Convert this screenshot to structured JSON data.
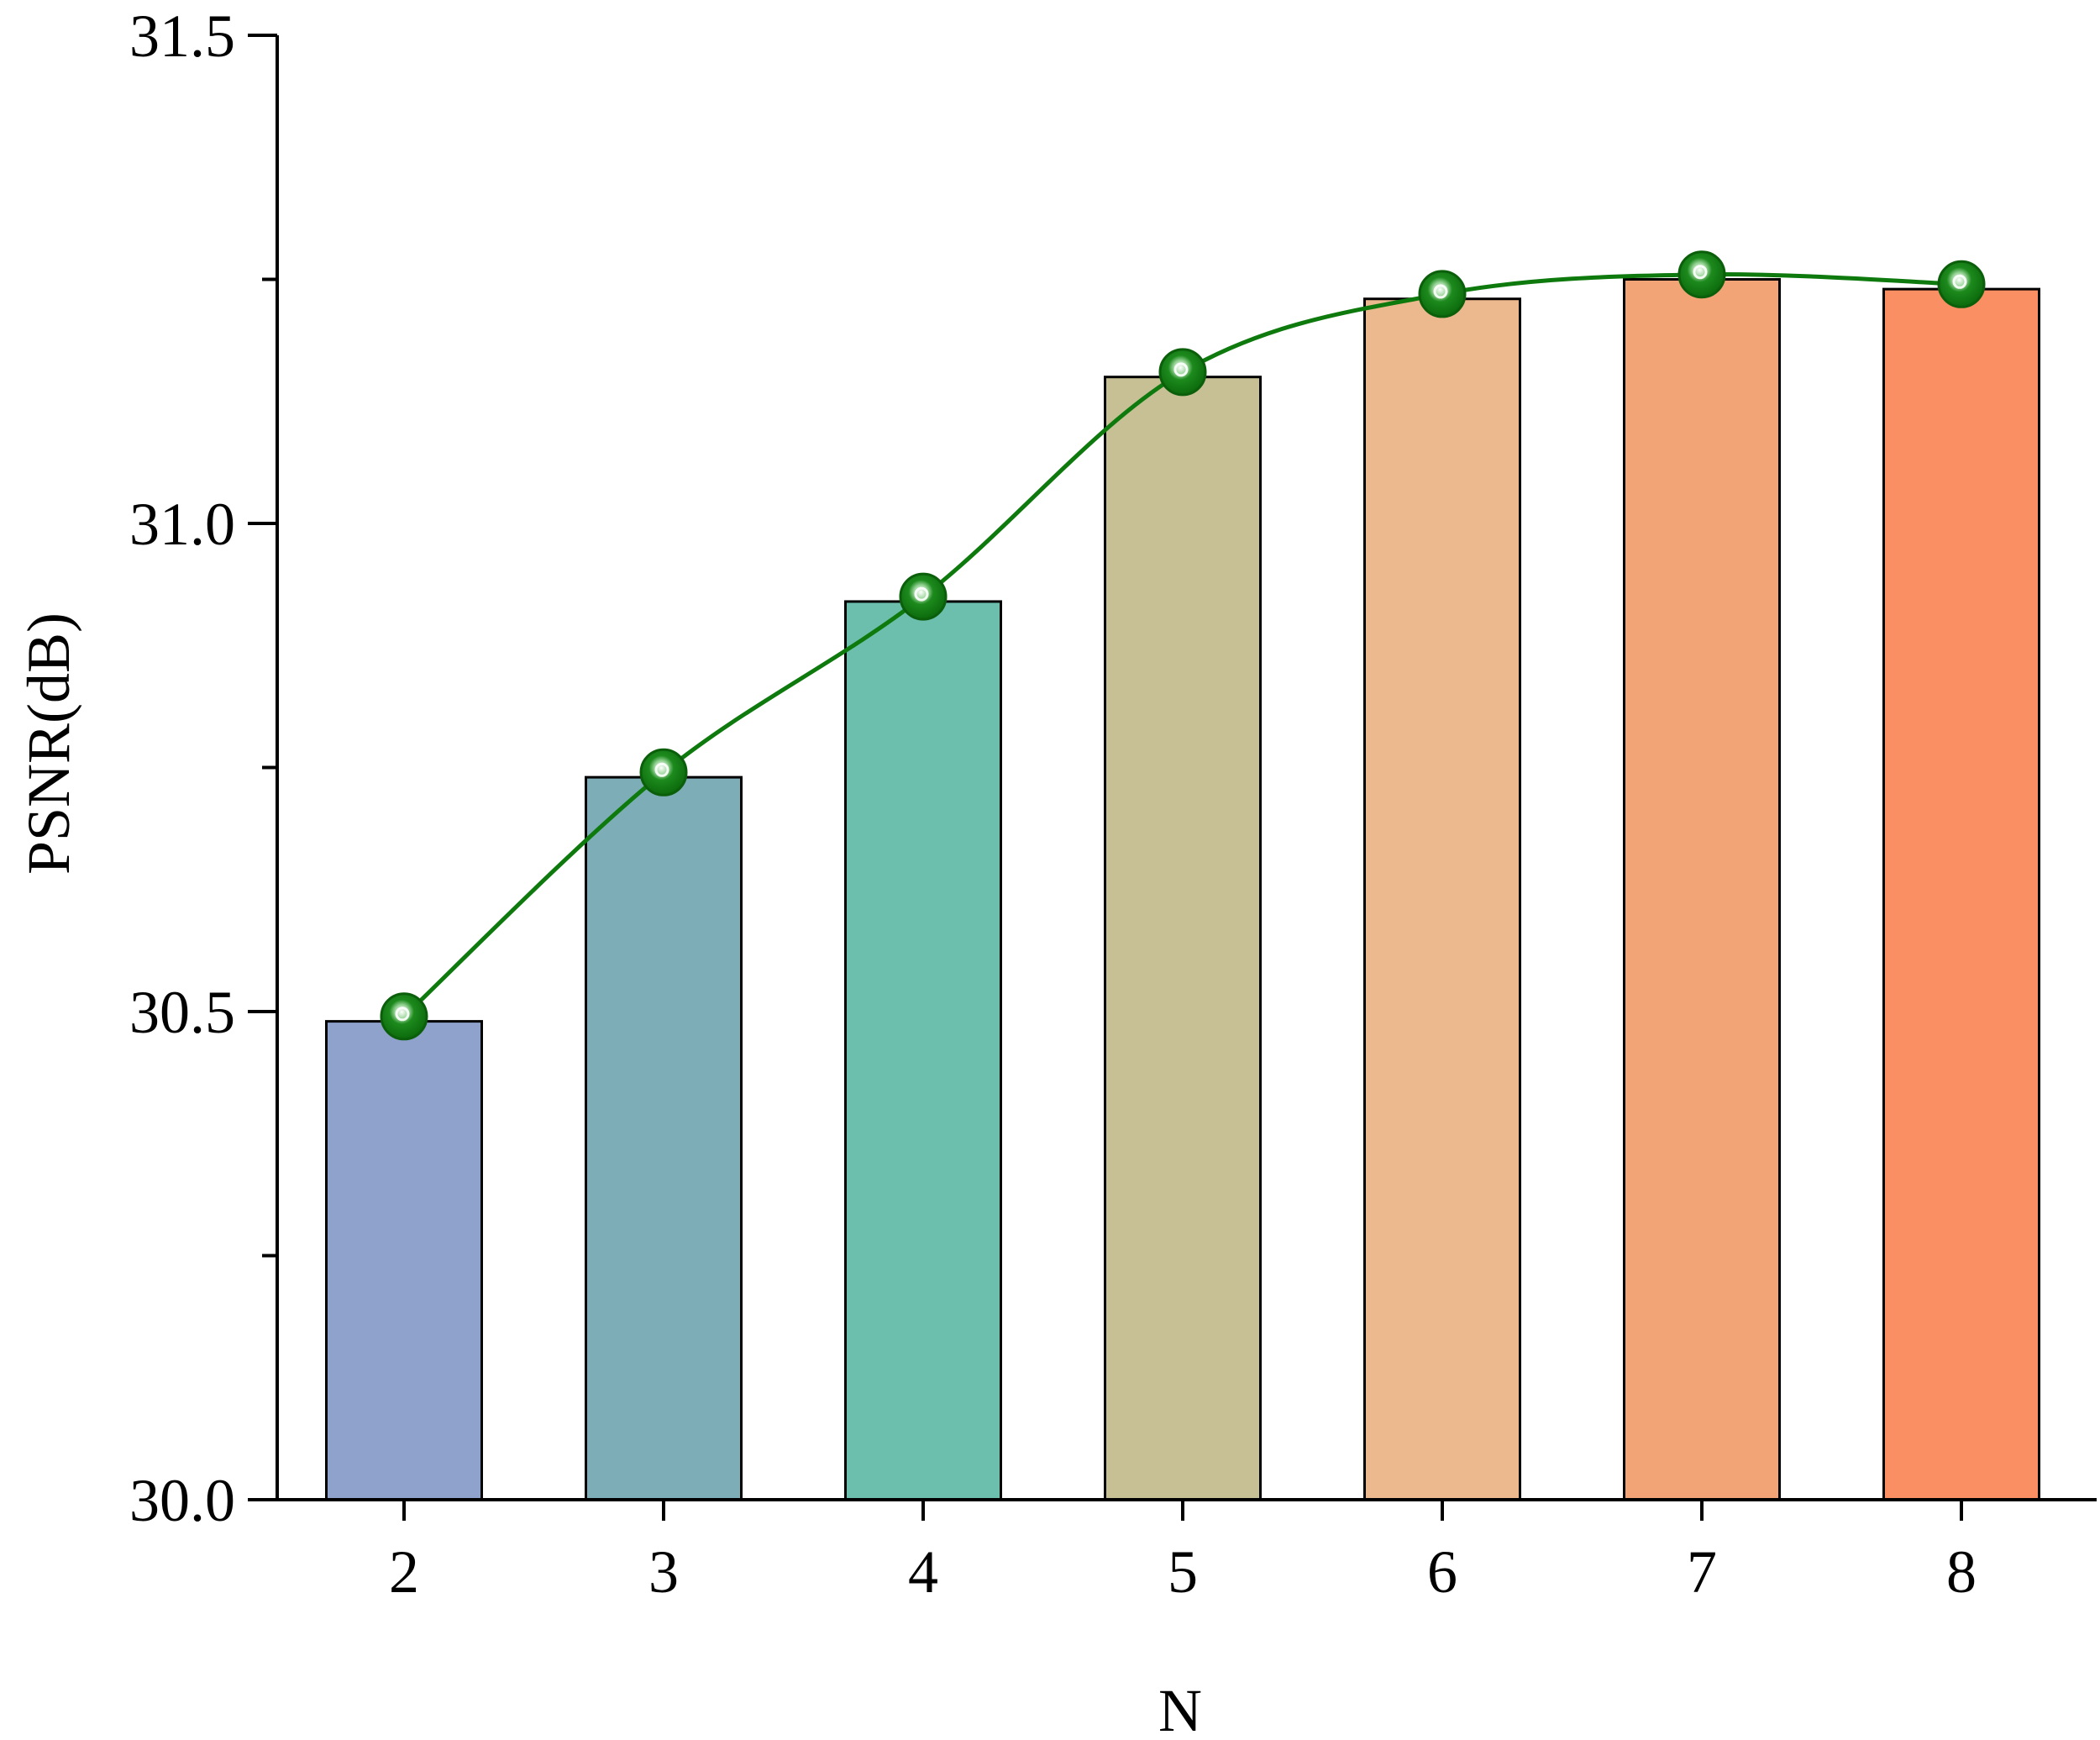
{
  "chart_data": {
    "type": "bar",
    "title": "",
    "xlabel": "N",
    "ylabel": "PSNR(dB)",
    "categories": [
      "2",
      "3",
      "4",
      "5",
      "6",
      "7",
      "8"
    ],
    "values": [
      30.49,
      30.74,
      30.92,
      31.15,
      31.23,
      31.25,
      31.24
    ],
    "bar_colors": [
      "#8EA2CC",
      "#7DAEB8",
      "#6CBFAD",
      "#C6C094",
      "#ECB88D",
      "#F3A476",
      "#FA8F63"
    ],
    "line_series": {
      "type": "line",
      "values": [
        30.495,
        30.745,
        30.925,
        31.155,
        31.235,
        31.255,
        31.245
      ],
      "color": "#0E7A0E",
      "marker": "circle"
    },
    "ylim": [
      30.0,
      31.5
    ],
    "yticks": [
      "30.0",
      "30.5",
      "31.0",
      "31.5"
    ],
    "grid": false,
    "legend": "none"
  }
}
